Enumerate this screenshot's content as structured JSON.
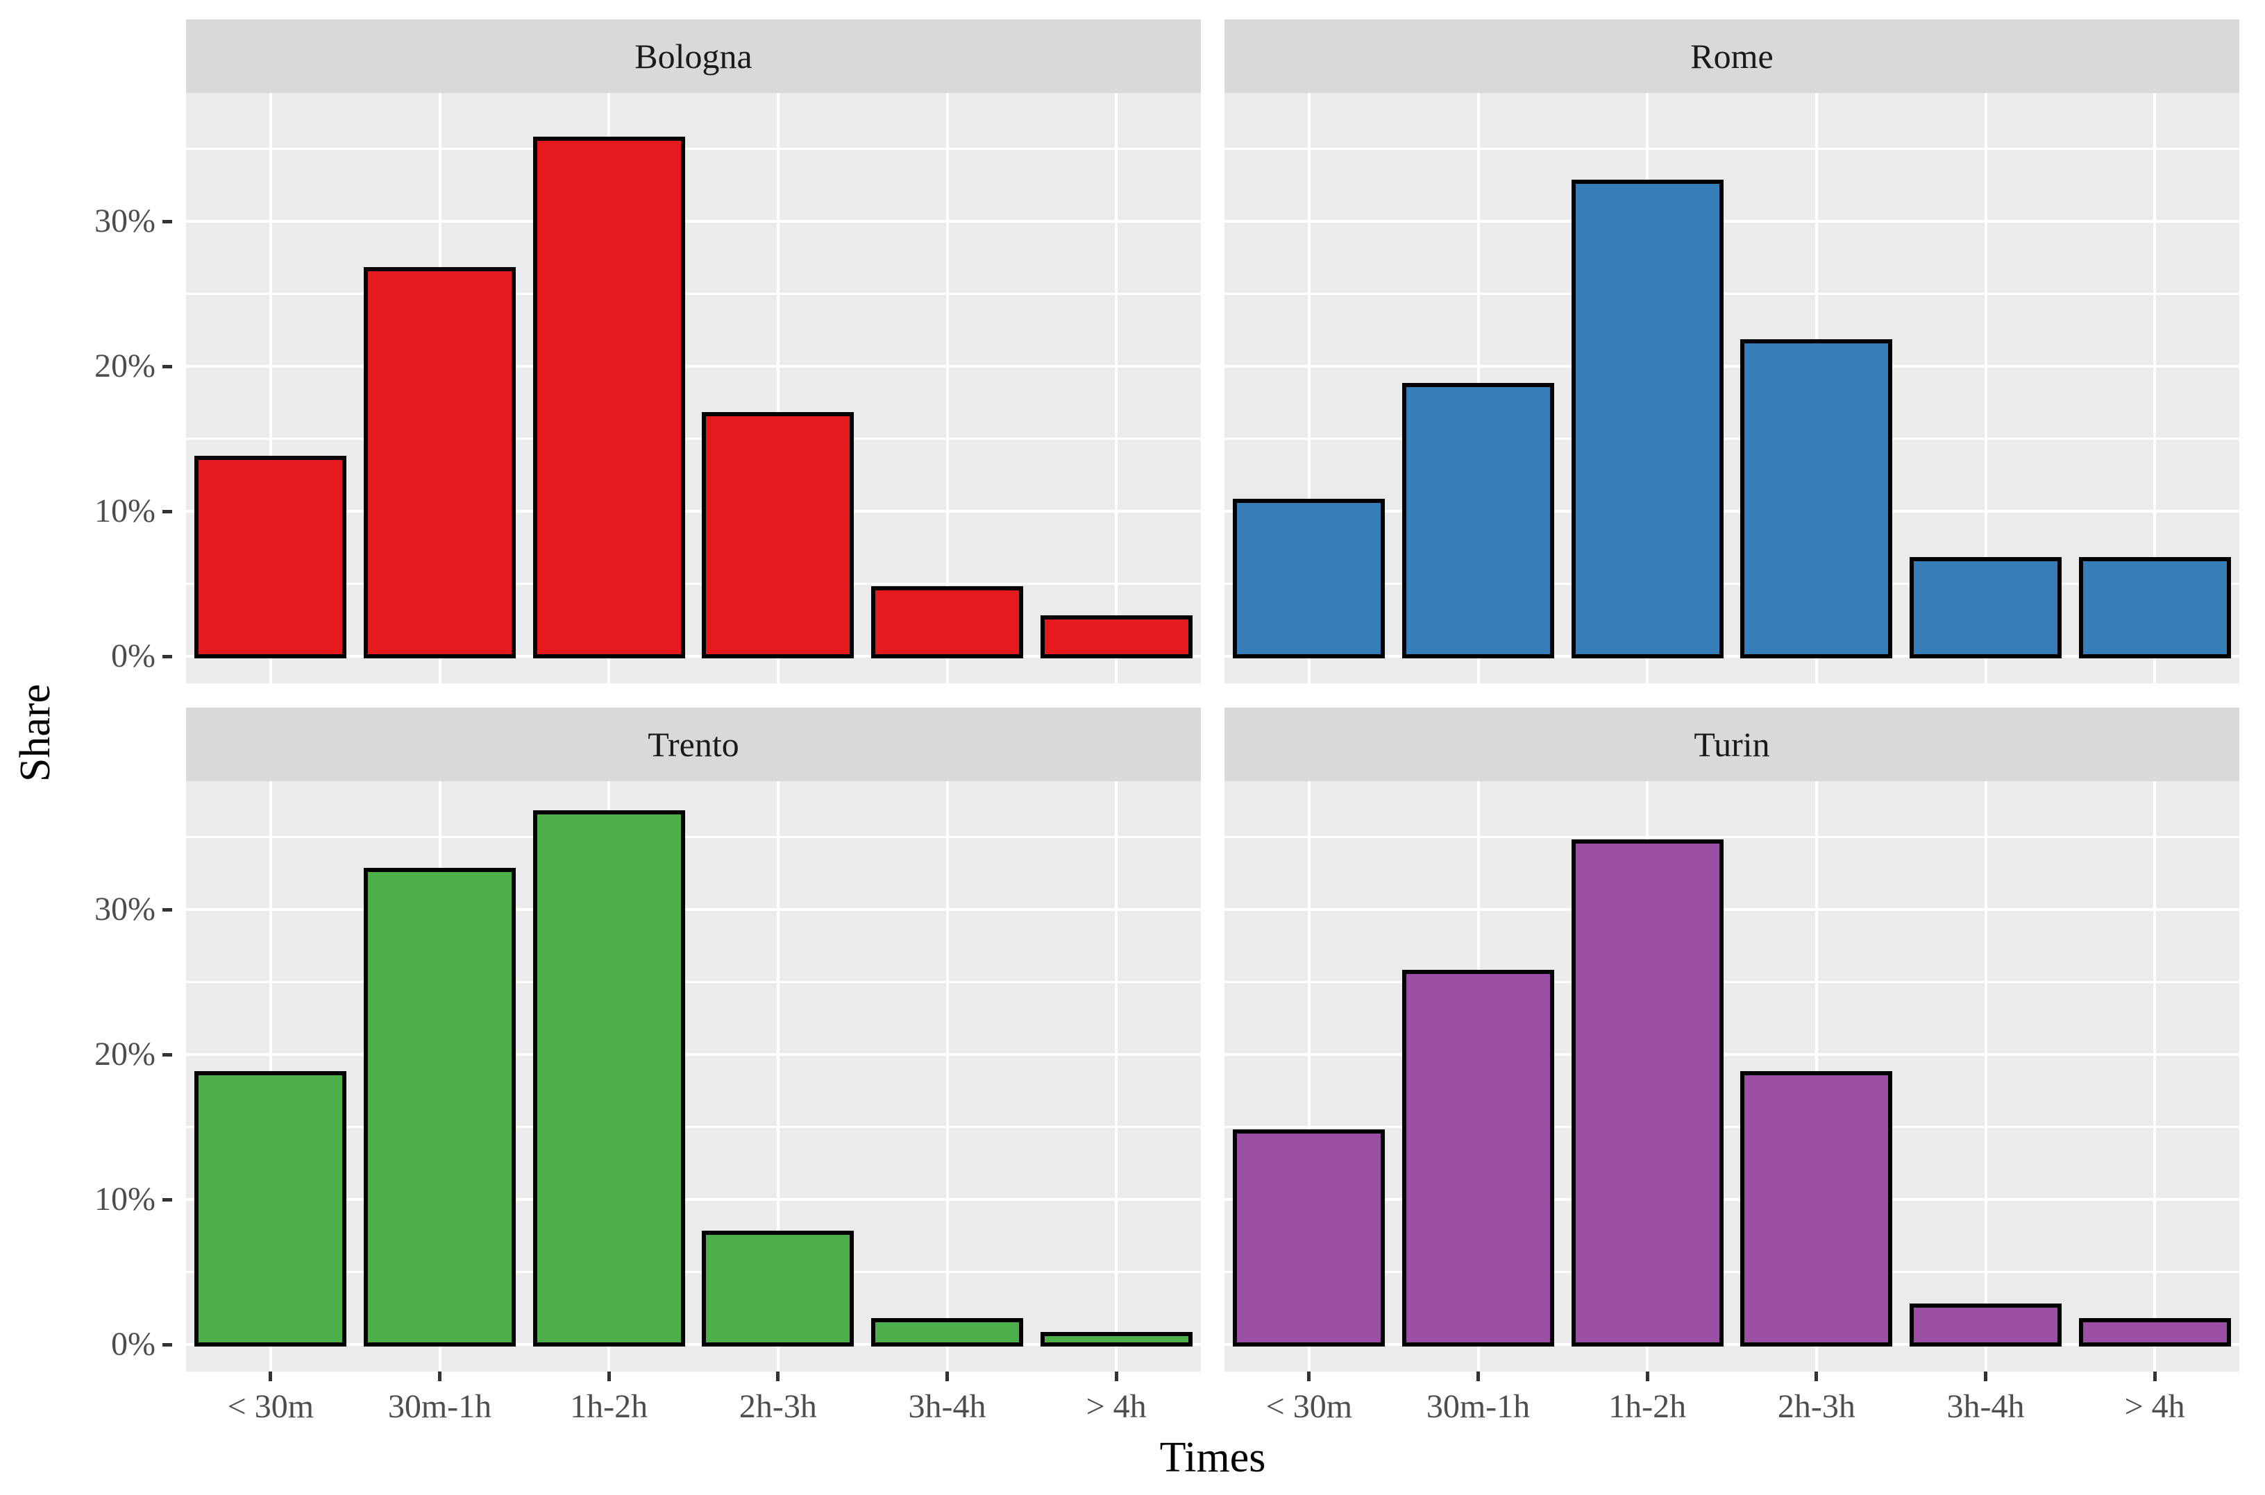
{
  "chart_data": {
    "type": "bar",
    "xlabel": "Times",
    "ylabel": "Share",
    "categories": [
      "< 30m",
      "30m-1h",
      "1h-2h",
      "2h-3h",
      "3h-4h",
      "> 4h"
    ],
    "value_unit": "percent",
    "facets": [
      {
        "title": "Bologna",
        "color": "#e41a1c",
        "values": [
          14,
          27,
          36,
          17,
          5,
          3
        ]
      },
      {
        "title": "Rome",
        "color": "#377eb8",
        "values": [
          11,
          19,
          33,
          22,
          7,
          7
        ]
      },
      {
        "title": "Trento",
        "color": "#4daf4a",
        "values": [
          19,
          33,
          37,
          8,
          2,
          1
        ]
      },
      {
        "title": "Turin",
        "color": "#9a4fa5",
        "values": [
          15,
          26,
          35,
          19,
          3,
          2
        ]
      }
    ],
    "y_ticks": [
      {
        "value": 0,
        "label": "0%"
      },
      {
        "value": 10,
        "label": "10%"
      },
      {
        "value": 20,
        "label": "20%"
      },
      {
        "value": 30,
        "label": "30%"
      }
    ],
    "y_minor_ticks": [
      5,
      15,
      25,
      35
    ],
    "ylim": [
      -1.85,
      38.85
    ],
    "grid": true,
    "legend": false,
    "facet_layout": "2x2"
  },
  "style": {
    "figure_background": "#ffffff",
    "panel_background": "#ebebeb",
    "strip_background": "#d9d9d9",
    "gridline_color": "#ffffff",
    "bar_outline_color": "#000000",
    "tick_mark_color": "#333333",
    "tick_label_color": "#4d4d4d",
    "strip_text_color": "#1a1a1a",
    "axis_title_color": "#000000"
  }
}
